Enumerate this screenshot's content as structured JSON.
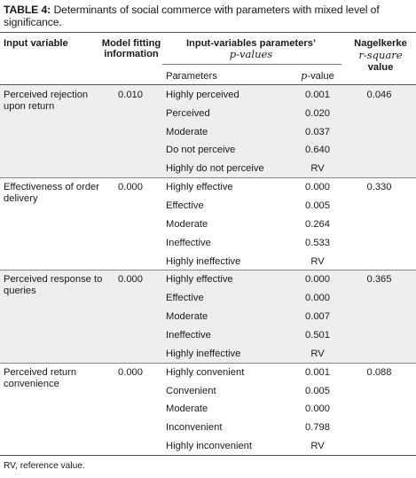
{
  "caption": {
    "label": "TABLE 4:",
    "text": "Determinants of social commerce with parameters with mixed level of significance."
  },
  "headers": {
    "input_variable": "Input variable",
    "model_fit_1": "Model fitting",
    "model_fit_2": "information",
    "params_1": "Input-variables parameters’",
    "params_2": "p-values",
    "nagelkerke_1": "Nagelkerke",
    "nagelkerke_2": "r-square",
    "nagelkerke_3": "value",
    "parameters": "Parameters",
    "pvalue_p": "p",
    "pvalue_rest": "-value"
  },
  "groups": [
    {
      "variable": "Perceived rejection upon return",
      "model_fit": "0.010",
      "r_square": "0.046",
      "rows": [
        {
          "parameter": "Highly perceived",
          "p_value": "0.001"
        },
        {
          "parameter": "Perceived",
          "p_value": "0.020"
        },
        {
          "parameter": "Moderate",
          "p_value": "0.037"
        },
        {
          "parameter": "Do not perceive",
          "p_value": "0.640"
        },
        {
          "parameter": "Highly do not perceive",
          "p_value": "RV"
        }
      ]
    },
    {
      "variable": "Effectiveness of order delivery",
      "model_fit": "0.000",
      "r_square": "0.330",
      "rows": [
        {
          "parameter": "Highly effective",
          "p_value": "0.000"
        },
        {
          "parameter": "Effective",
          "p_value": "0.005"
        },
        {
          "parameter": "Moderate",
          "p_value": "0.264"
        },
        {
          "parameter": "Ineffective",
          "p_value": "0.533"
        },
        {
          "parameter": "Highly ineffective",
          "p_value": "RV"
        }
      ]
    },
    {
      "variable": "Perceived response to queries",
      "model_fit": "0.000",
      "r_square": "0.365",
      "rows": [
        {
          "parameter": "Highly effective",
          "p_value": "0.000"
        },
        {
          "parameter": "Effective",
          "p_value": "0.000"
        },
        {
          "parameter": "Moderate",
          "p_value": "0.007"
        },
        {
          "parameter": "Ineffective",
          "p_value": "0.501"
        },
        {
          "parameter": "Highly ineffective",
          "p_value": "RV"
        }
      ]
    },
    {
      "variable": "Perceived return convenience",
      "model_fit": "0.000",
      "r_square": "0.088",
      "rows": [
        {
          "parameter": "Highly convenient",
          "p_value": "0.001"
        },
        {
          "parameter": "Convenient",
          "p_value": "0.005"
        },
        {
          "parameter": "Moderate",
          "p_value": "0.000"
        },
        {
          "parameter": "Inconvenient",
          "p_value": "0.798"
        },
        {
          "parameter": "Highly inconvenient",
          "p_value": "RV"
        }
      ]
    }
  ],
  "footnote": "RV, reference value."
}
